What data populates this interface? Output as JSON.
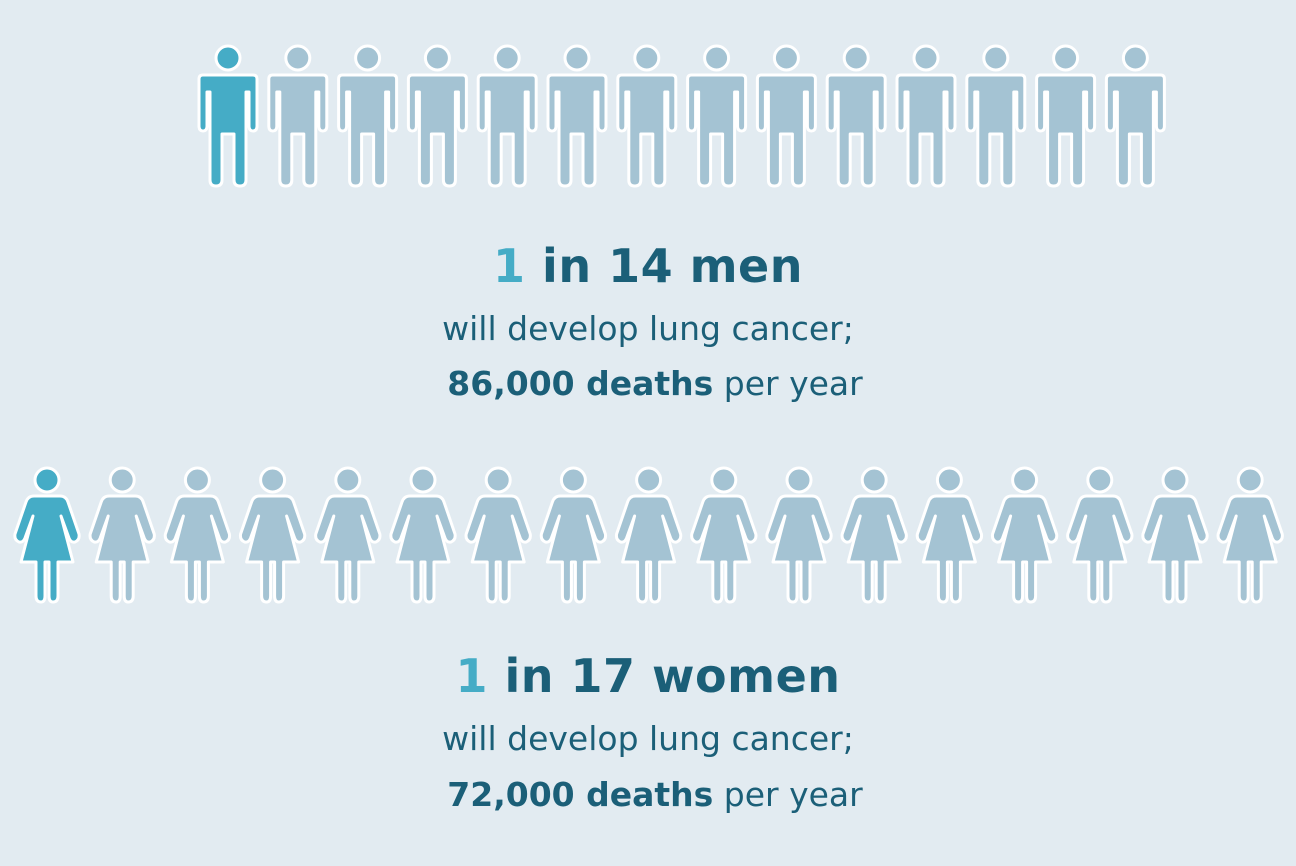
{
  "colors": {
    "background": "#e2ebf1",
    "highlight_figure": "#45acc6",
    "regular_figure": "#a4c3d3",
    "figure_outline": "#ffffff",
    "text": "#1b5f78",
    "number_accent": "#45acc6"
  },
  "men": {
    "total_figures": 14,
    "highlighted_figures": 1,
    "icon": "man-icon",
    "headline_number": "1",
    "headline_rest": " in 14 men",
    "line1": "will develop lung cancer;",
    "deaths_bold": "86,000 deaths",
    "deaths_rest": " per year"
  },
  "women": {
    "total_figures": 17,
    "highlighted_figures": 1,
    "icon": "woman-icon",
    "headline_number": "1",
    "headline_rest": " in 17 women",
    "line1": "will develop lung cancer;",
    "deaths_bold": "72,000 deaths",
    "deaths_rest": " per year"
  }
}
